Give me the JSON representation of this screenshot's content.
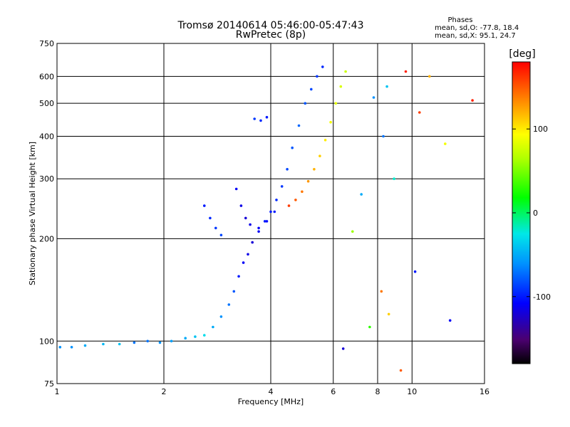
{
  "chart_data": {
    "type": "scatter",
    "title": "Tromsø 20140614 05:46:00-05:47:43",
    "subtitle": "RwPretec (8p)",
    "xlabel": "Frequency [MHz]",
    "ylabel": "Stationary phase Virtual Height [km]",
    "x_scale": "log",
    "y_scale": "log",
    "xlim": [
      1,
      16
    ],
    "ylim": [
      75,
      750
    ],
    "x_ticks": [
      1,
      2,
      4,
      6,
      8,
      10,
      16
    ],
    "y_ticks": [
      75,
      100,
      200,
      300,
      400,
      500,
      600,
      750
    ],
    "grid": true,
    "phases_box": {
      "heading": "Phases",
      "line_o": "mean, sd,O:  -77.8, 18.4",
      "line_x": "mean, sd,X:  95.1, 24.7"
    },
    "colorbar": {
      "label": "[deg]",
      "range": [
        -180,
        180
      ],
      "ticks": [
        100,
        0,
        -100
      ]
    },
    "traces": [
      {
        "name": "",
        "points": [
          [
            1.02,
            96,
            -60
          ],
          [
            1.1,
            96,
            -60
          ],
          [
            1.2,
            97,
            -50
          ],
          [
            1.35,
            98,
            -45
          ],
          [
            1.5,
            98,
            -40
          ],
          [
            1.65,
            99,
            -70
          ],
          [
            1.8,
            100,
            -70
          ],
          [
            1.95,
            99,
            -60
          ],
          [
            2.1,
            100,
            -55
          ],
          [
            2.3,
            102,
            -50
          ],
          [
            2.45,
            103,
            -40
          ],
          [
            2.6,
            104,
            -30
          ],
          [
            2.75,
            110,
            -50
          ],
          [
            2.9,
            118,
            -60
          ],
          [
            3.05,
            128,
            -70
          ],
          [
            3.15,
            140,
            -80
          ],
          [
            3.25,
            155,
            -100
          ],
          [
            3.35,
            170,
            -110
          ],
          [
            3.45,
            180,
            -115
          ],
          [
            3.55,
            195,
            -120
          ],
          [
            3.7,
            210,
            -110
          ],
          [
            3.85,
            225,
            -100
          ],
          [
            4.0,
            240,
            -100
          ],
          [
            4.15,
            260,
            -95
          ],
          [
            4.3,
            285,
            -90
          ],
          [
            4.45,
            320,
            -85
          ],
          [
            4.6,
            370,
            -80
          ],
          [
            4.8,
            430,
            -75
          ],
          [
            5.0,
            500,
            -80
          ],
          [
            5.2,
            550,
            -85
          ],
          [
            5.4,
            600,
            -90
          ],
          [
            5.6,
            640,
            -95
          ]
        ]
      },
      {
        "name": "",
        "points": [
          [
            4.5,
            250,
            160
          ],
          [
            4.7,
            260,
            150
          ],
          [
            4.9,
            275,
            140
          ],
          [
            5.1,
            295,
            130
          ],
          [
            5.3,
            320,
            120
          ],
          [
            5.5,
            350,
            110
          ],
          [
            5.7,
            390,
            100
          ],
          [
            5.9,
            440,
            90
          ],
          [
            6.1,
            500,
            85
          ],
          [
            6.3,
            560,
            80
          ],
          [
            6.5,
            620,
            75
          ]
        ]
      },
      {
        "name": "",
        "points": [
          [
            3.2,
            280,
            -110
          ],
          [
            3.3,
            250,
            -115
          ],
          [
            3.4,
            230,
            -120
          ],
          [
            3.5,
            220,
            -115
          ],
          [
            3.7,
            215,
            -110
          ],
          [
            3.9,
            225,
            -105
          ],
          [
            4.1,
            240,
            -100
          ]
        ]
      },
      {
        "name": "",
        "points": [
          [
            2.6,
            250,
            -100
          ],
          [
            2.7,
            230,
            -95
          ],
          [
            2.8,
            215,
            -90
          ],
          [
            2.9,
            205,
            -85
          ]
        ]
      },
      {
        "name": "",
        "points": [
          [
            3.6,
            450,
            -90
          ],
          [
            3.75,
            445,
            -95
          ],
          [
            3.9,
            455,
            -100
          ]
        ]
      },
      {
        "name": "",
        "points": [
          [
            7.8,
            520,
            -60
          ],
          [
            8.3,
            400,
            -70
          ],
          [
            8.5,
            560,
            -40
          ],
          [
            8.9,
            300,
            -20
          ],
          [
            9.6,
            620,
            170
          ],
          [
            10.5,
            470,
            160
          ],
          [
            11.2,
            600,
            120
          ],
          [
            12.4,
            380,
            90
          ],
          [
            14.8,
            510,
            170
          ],
          [
            8.2,
            140,
            140
          ],
          [
            8.6,
            120,
            110
          ],
          [
            9.3,
            82,
            150
          ],
          [
            10.2,
            160,
            -100
          ],
          [
            12.8,
            115,
            -110
          ],
          [
            6.8,
            210,
            60
          ],
          [
            7.2,
            270,
            -50
          ],
          [
            6.4,
            95,
            -120
          ],
          [
            7.6,
            110,
            30
          ]
        ]
      }
    ]
  }
}
